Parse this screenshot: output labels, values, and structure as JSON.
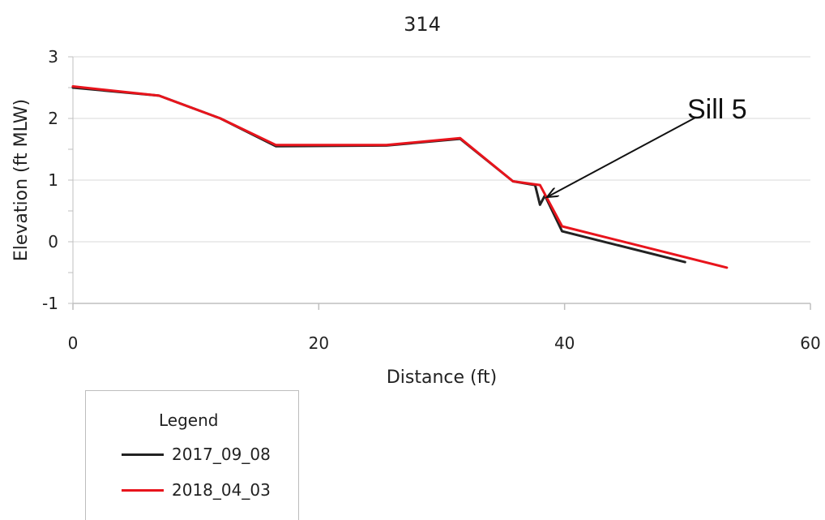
{
  "chart_data": {
    "type": "line",
    "title": "314",
    "xlabel": "Distance (ft)",
    "ylabel": "Elevation (ft MLW)",
    "xlim": [
      0,
      60
    ],
    "ylim": [
      -1,
      3
    ],
    "xticks": [
      0,
      20,
      40,
      60
    ],
    "yticks": [
      -1,
      0,
      1,
      2,
      3
    ],
    "grid": "horizontal",
    "legend_title": "Legend",
    "legend_position": "bottom-left, below plot",
    "series": [
      {
        "name": "2017_09_08",
        "color": "#222222",
        "x": [
          0,
          7,
          12,
          16.5,
          25.5,
          31.5,
          35.8,
          37.6,
          38.0,
          38.4,
          39.8,
          49.8
        ],
        "y": [
          2.5,
          2.37,
          2.0,
          1.55,
          1.56,
          1.67,
          0.98,
          0.92,
          0.6,
          0.75,
          0.17,
          -0.33
        ]
      },
      {
        "name": "2018_04_03",
        "color": "#e8141c",
        "x": [
          0,
          7,
          12,
          16.5,
          25.5,
          31.5,
          35.8,
          38.0,
          39.8,
          53.2
        ],
        "y": [
          2.52,
          2.37,
          2.0,
          1.57,
          1.57,
          1.68,
          0.98,
          0.92,
          0.25,
          -0.42
        ]
      }
    ],
    "annotations": [
      {
        "text": "Sill 5",
        "arrow_to": [
          38.3,
          0.75
        ]
      }
    ]
  }
}
